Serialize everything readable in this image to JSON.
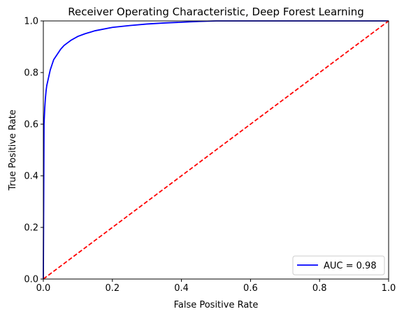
{
  "chart_data": {
    "type": "line",
    "title": "Receiver Operating Characteristic, Deep Forest Learning",
    "xlabel": "False Positive Rate",
    "ylabel": "True Positive Rate",
    "xlim": [
      0,
      1
    ],
    "ylim": [
      0,
      1
    ],
    "xticks": [
      "0.0",
      "0.2",
      "0.4",
      "0.6",
      "0.8",
      "1.0"
    ],
    "yticks": [
      "0.0",
      "0.2",
      "0.4",
      "0.6",
      "0.8",
      "1.0"
    ],
    "grid": false,
    "legend_position": "lower-right",
    "series": [
      {
        "name": "AUC = 0.98",
        "color": "#0000ff",
        "style": "solid",
        "x": [
          0,
          0.002,
          0.004,
          0.006,
          0.008,
          0.01,
          0.015,
          0.02,
          0.025,
          0.03,
          0.04,
          0.05,
          0.06,
          0.07,
          0.08,
          0.1,
          0.12,
          0.15,
          0.2,
          0.25,
          0.3,
          0.35,
          0.4,
          0.45,
          0.5,
          0.6,
          0.7,
          0.8,
          0.9,
          1.0
        ],
        "y": [
          0,
          0.6,
          0.66,
          0.7,
          0.73,
          0.75,
          0.78,
          0.81,
          0.83,
          0.85,
          0.87,
          0.89,
          0.905,
          0.915,
          0.925,
          0.94,
          0.95,
          0.962,
          0.975,
          0.982,
          0.988,
          0.992,
          0.995,
          0.998,
          1.0,
          1.0,
          1.0,
          1.0,
          1.0,
          1.0
        ]
      },
      {
        "name": "",
        "color": "#ff0000",
        "style": "dashed",
        "x": [
          0,
          1
        ],
        "y": [
          0,
          1
        ]
      }
    ]
  }
}
